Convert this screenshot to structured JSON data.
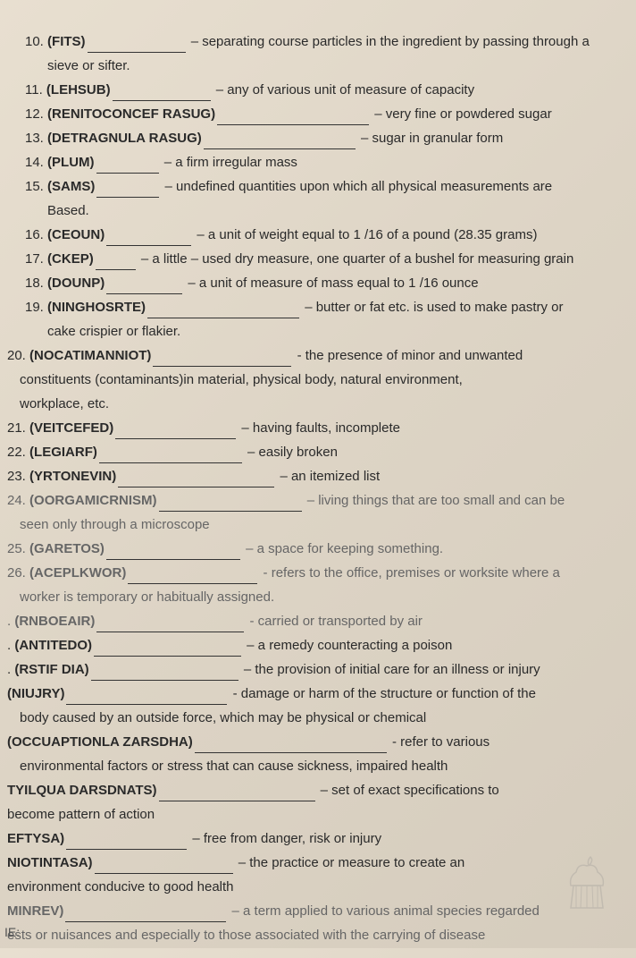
{
  "items": [
    {
      "num": "10.",
      "word": "(FITS)",
      "blank_width": 110,
      "def": "– separating course particles in the ingredient by passing through a",
      "cont": "sieve or sifter.",
      "indent": false
    },
    {
      "num": "11.",
      "word": "(LEHSUB)",
      "blank_width": 110,
      "def": "– any of various unit of measure of capacity",
      "indent": false
    },
    {
      "num": "12.",
      "word": "(RENITOCONCEF RASUG)",
      "blank_width": 170,
      "def": "– very fine or powdered sugar",
      "indent": false
    },
    {
      "num": "13.",
      "word": "(DETRAGNULA RASUG)",
      "blank_width": 170,
      "def": "– sugar in granular form",
      "indent": false
    },
    {
      "num": "14.",
      "word": "(PLUM)",
      "blank_width": 70,
      "def": "– a firm irregular mass",
      "indent": false
    },
    {
      "num": "15.",
      "word": "(SAMS)",
      "blank_width": 70,
      "def": "– undefined quantities upon which all physical measurements are",
      "cont": "Based.",
      "indent": false
    },
    {
      "num": "16.",
      "word": "(CEOUN)",
      "blank_width": 95,
      "def": "– a unit of weight equal to 1 /16 of a pound (28.35 grams)",
      "indent": false
    },
    {
      "num": "17.",
      "word": "(CKEP)",
      "blank_width": 45,
      "def": "– a little – used dry measure, one quarter of a bushel for measuring grain",
      "indent": false
    },
    {
      "num": "18.",
      "word": "(DOUNP)",
      "blank_width": 85,
      "def": "– a unit of measure of mass equal to 1 /16 ounce",
      "indent": false
    },
    {
      "num": "19.",
      "word": "(NINGHOSRTE)",
      "blank_width": 170,
      "def": "– butter or fat etc. is used to make pastry or",
      "cont": "cake crispier or flakier.",
      "indent": false
    },
    {
      "num": "20.",
      "word": "(NOCATIMANNIOT)",
      "blank_width": 155,
      "def": "- the presence of minor and unwanted",
      "cont": "constituents (contaminants)in material, physical body, natural environment,",
      "cont2": "workplace, etc.",
      "left": true
    },
    {
      "num": "21.",
      "word": "(VEITCEFED)",
      "blank_width": 135,
      "def": "– having faults, incomplete",
      "left": true
    },
    {
      "num": "22.",
      "word": "(LEGIARF)",
      "blank_width": 160,
      "def": "– easily broken",
      "left": true
    },
    {
      "num": "23.",
      "word": "(YRTONEVIN)",
      "blank_width": 175,
      "def": "– an itemized list",
      "left": true
    },
    {
      "num": "24.",
      "word": "(OORGAMICRNISM)",
      "blank_width": 160,
      "def": "– living things that are too small and can be",
      "cont": "seen only through a microscope",
      "left": true,
      "faded": true
    },
    {
      "num": "25.",
      "word": "(GARETOS)",
      "blank_width": 150,
      "def": "– a space for keeping something.",
      "left": true,
      "faded": true
    },
    {
      "num": "26.",
      "word": "(ACEPLKWOR)",
      "blank_width": 145,
      "def": "- refers to the office, premises or worksite where a",
      "cont": "worker is temporary or habitually assigned.",
      "left": true,
      "faded": true
    },
    {
      "num": ".",
      "word": "(RNBOEAIR)",
      "blank_width": 165,
      "def": "- carried or transported by air",
      "left": true,
      "faded": true
    },
    {
      "num": ".",
      "word": "(ANTITEDO)",
      "blank_width": 165,
      "def": "– a remedy counteracting a poison",
      "left": true
    },
    {
      "num": ".",
      "word": "(RSTIF DIA)",
      "blank_width": 165,
      "def": "– the provision of initial care for an illness or injury",
      "left": true
    },
    {
      "num": "",
      "word": "(NIUJRY)",
      "blank_width": 180,
      "def": "- damage or harm of the structure or function of the",
      "cont": "body caused by an outside force, which may be physical or chemical",
      "left": true
    },
    {
      "num": "",
      "word": "(OCCUAPTIONLA ZARSDHA)",
      "blank_width": 215,
      "def": "- refer to various",
      "cont": "environmental factors or stress that can cause sickness, impaired health",
      "left": true
    },
    {
      "num": "",
      "word": "TYILQUA DARSDNATS)",
      "blank_width": 175,
      "def": "– set of exact specifications to",
      "cont": "become pattern of action",
      "left": true,
      "nobold_cont": true
    },
    {
      "num": "",
      "word": "EFTYSA)",
      "blank_width": 135,
      "def": "– free from danger, risk or injury",
      "left": true
    },
    {
      "num": "",
      "word": "NIOTINTASA)",
      "blank_width": 155,
      "def": "– the practice or measure to create an",
      "cont": "environment conducive to good health",
      "left": true,
      "nobold_cont": true
    },
    {
      "num": "",
      "word": "MINREV)",
      "blank_width": 180,
      "def": "– a term applied to various animal species regarded",
      "cont": "ests or nuisances and especially to those associated with the carrying of disease",
      "left": true,
      "faded": true,
      "nobold_cont": true
    }
  ],
  "bottom_label": "IE:"
}
